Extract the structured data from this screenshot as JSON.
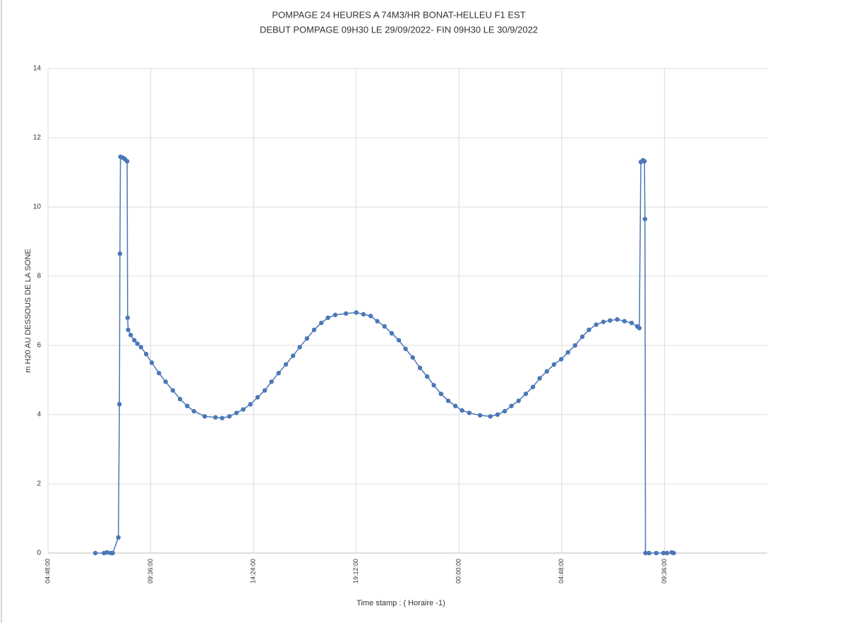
{
  "chart_data": {
    "type": "line",
    "title": "POMPAGE 24 HEURES  A 74M3/HR BONAT-HELLEU F1 EST",
    "subtitle": "DEBUT POMPAGE 09H30  LE 29/09/2022- FIN 09H30 LE 30/9/2022",
    "x_label": "Time stamp : ( Horaire -1)",
    "y_label": "m H20 AU DESSOUS DE LA SONE",
    "xlim": [
      0.2,
      1.6
    ],
    "xticks": [
      {
        "value": 0.2,
        "label": "04:48:00"
      },
      {
        "value": 0.4,
        "label": "09:36:00"
      },
      {
        "value": 0.6,
        "label": "14:24:00"
      },
      {
        "value": 0.8,
        "label": "19:12:00"
      },
      {
        "value": 1.0,
        "label": "00:00:00"
      },
      {
        "value": 1.2,
        "label": "04:48:00"
      },
      {
        "value": 1.4,
        "label": "09:36:00"
      }
    ],
    "ylim": [
      0,
      14
    ],
    "yticks": [
      0,
      2,
      4,
      6,
      8,
      10,
      12,
      14
    ],
    "grid": true,
    "markers": true,
    "series": [
      {
        "color": "#4a77b8",
        "x": [
          0.292,
          0.309,
          0.315,
          0.322,
          0.326,
          0.337,
          0.339,
          0.34,
          0.341,
          0.346,
          0.35,
          0.354,
          0.355,
          0.356,
          0.361,
          0.368,
          0.374,
          0.381,
          0.391,
          0.402,
          0.416,
          0.429,
          0.443,
          0.457,
          0.471,
          0.484,
          0.505,
          0.526,
          0.539,
          0.553,
          0.567,
          0.58,
          0.594,
          0.608,
          0.622,
          0.635,
          0.649,
          0.663,
          0.677,
          0.69,
          0.704,
          0.718,
          0.732,
          0.745,
          0.759,
          0.78,
          0.8,
          0.814,
          0.828,
          0.841,
          0.855,
          0.869,
          0.883,
          0.896,
          0.91,
          0.924,
          0.938,
          0.951,
          0.965,
          0.979,
          0.993,
          1.006,
          1.02,
          1.041,
          1.061,
          1.075,
          1.089,
          1.102,
          1.116,
          1.13,
          1.144,
          1.157,
          1.171,
          1.185,
          1.199,
          1.212,
          1.226,
          1.24,
          1.253,
          1.267,
          1.281,
          1.294,
          1.308,
          1.322,
          1.336,
          1.347,
          1.351,
          1.354,
          1.358,
          1.361,
          1.362,
          1.363,
          1.37,
          1.384,
          1.398,
          1.405,
          1.414,
          1.418
        ],
        "values": [
          0,
          0,
          0.02,
          0,
          0,
          0.45,
          4.3,
          8.65,
          11.45,
          11.42,
          11.38,
          11.32,
          6.8,
          6.45,
          6.3,
          6.15,
          6.05,
          5.95,
          5.75,
          5.5,
          5.2,
          4.95,
          4.7,
          4.45,
          4.25,
          4.1,
          3.95,
          3.92,
          3.9,
          3.95,
          4.05,
          4.15,
          4.3,
          4.5,
          4.7,
          4.95,
          5.2,
          5.45,
          5.7,
          5.95,
          6.2,
          6.45,
          6.65,
          6.8,
          6.88,
          6.92,
          6.95,
          6.9,
          6.85,
          6.7,
          6.55,
          6.35,
          6.15,
          5.9,
          5.65,
          5.35,
          5.1,
          4.85,
          4.6,
          4.4,
          4.25,
          4.12,
          4.05,
          3.98,
          3.95,
          4.0,
          4.1,
          4.25,
          4.4,
          4.6,
          4.8,
          5.05,
          5.25,
          5.45,
          5.6,
          5.8,
          6.0,
          6.25,
          6.45,
          6.6,
          6.68,
          6.72,
          6.75,
          6.7,
          6.65,
          6.55,
          6.5,
          11.3,
          11.35,
          11.32,
          9.65,
          0,
          0,
          0,
          0,
          0,
          0.02,
          0
        ]
      }
    ]
  }
}
